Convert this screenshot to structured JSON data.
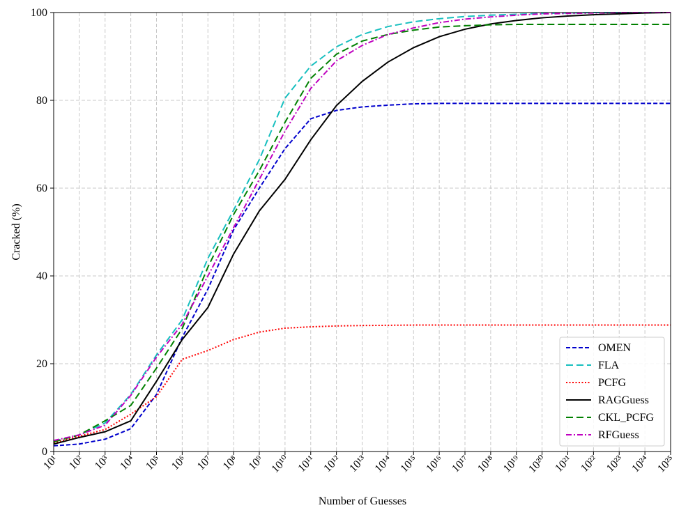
{
  "chart_data": {
    "type": "line",
    "xlabel": "Number of Guesses",
    "ylabel": "Cracked (%)",
    "xlog": true,
    "grid": true,
    "legend": "lower right",
    "x": [
      10.0,
      100.0,
      1000.0,
      10000.0,
      100000.0,
      1000000.0,
      10000000.0,
      100000000.0,
      1000000000.0,
      10000000000.0,
      100000000000.0,
      1000000000000.0,
      10000000000000.0,
      100000000000000.0,
      1000000000000000.0,
      1e+16,
      1e+17,
      1e+18,
      1e+19,
      1e+20,
      1e+21,
      1e+22,
      1e+23,
      1e+24,
      1e+25
    ],
    "xlim": [
      10.0,
      1e+25
    ],
    "xticks": [
      {
        "value": 10.0,
        "label": "10¹"
      },
      {
        "value": 100.0,
        "label": "10²"
      },
      {
        "value": 1000.0,
        "label": "10³"
      },
      {
        "value": 10000.0,
        "label": "10⁴"
      },
      {
        "value": 100000.0,
        "label": "10⁵"
      },
      {
        "value": 1000000.0,
        "label": "10⁶"
      },
      {
        "value": 10000000.0,
        "label": "10⁷"
      },
      {
        "value": 100000000.0,
        "label": "10⁸"
      },
      {
        "value": 1000000000.0,
        "label": "10⁹"
      },
      {
        "value": 10000000000.0,
        "label": "10¹⁰"
      },
      {
        "value": 100000000000.0,
        "label": "10¹¹"
      },
      {
        "value": 1000000000000.0,
        "label": "10¹²"
      },
      {
        "value": 10000000000000.0,
        "label": "10¹³"
      },
      {
        "value": 100000000000000.0,
        "label": "10¹⁴"
      },
      {
        "value": 1000000000000000.0,
        "label": "10¹⁵"
      },
      {
        "value": 1e+16,
        "label": "10¹⁶"
      },
      {
        "value": 1e+17,
        "label": "10¹⁷"
      },
      {
        "value": 1e+18,
        "label": "10¹⁸"
      },
      {
        "value": 1e+19,
        "label": "10¹⁹"
      },
      {
        "value": 1e+20,
        "label": "10²⁰"
      },
      {
        "value": 1e+21,
        "label": "10²¹"
      },
      {
        "value": 1e+22,
        "label": "10²²"
      },
      {
        "value": 1e+23,
        "label": "10²³"
      },
      {
        "value": 1e+24,
        "label": "10²⁴"
      },
      {
        "value": 1e+25,
        "label": "10²⁵"
      }
    ],
    "ylim": [
      0,
      100
    ],
    "yticks": [
      0,
      20,
      40,
      60,
      80,
      100
    ],
    "series": [
      {
        "name": "OMEN",
        "color": "#0000cc",
        "linestyle": "dashed",
        "values": [
          1.3,
          1.7,
          2.8,
          5.2,
          13,
          26,
          37,
          50.5,
          60,
          69,
          75.8,
          77.7,
          78.5,
          78.9,
          79.2,
          79.3,
          79.3,
          79.3,
          79.3,
          79.3,
          79.3,
          79.3,
          79.3,
          79.3,
          79.3
        ]
      },
      {
        "name": "FLA",
        "color": "#17bfbf",
        "linestyle": "longdash",
        "values": [
          2.3,
          3.8,
          6.5,
          13,
          22,
          30,
          44,
          55,
          66.5,
          80.5,
          87.8,
          92.2,
          95,
          96.8,
          97.9,
          98.6,
          99.1,
          99.4,
          99.6,
          99.8,
          99.9,
          100,
          100,
          100,
          100
        ]
      },
      {
        "name": "PCFG",
        "color": "#ff0000",
        "linestyle": "dotted",
        "values": [
          2,
          3.5,
          5,
          8.5,
          12.5,
          21,
          23,
          25.5,
          27.2,
          28.1,
          28.4,
          28.6,
          28.7,
          28.75,
          28.8,
          28.8,
          28.8,
          28.8,
          28.8,
          28.8,
          28.8,
          28.8,
          28.8,
          28.8,
          28.8
        ]
      },
      {
        "name": "RAGGuess",
        "color": "#000000",
        "linestyle": "solid",
        "values": [
          1.7,
          3.2,
          4.5,
          7,
          16,
          25.5,
          32.8,
          45,
          54.8,
          62,
          71,
          78.8,
          84.3,
          88.7,
          92,
          94.5,
          96.2,
          97.4,
          98.2,
          98.8,
          99.2,
          99.5,
          99.7,
          99.9,
          100
        ]
      },
      {
        "name": "CKL_PCFG",
        "color": "#008000",
        "linestyle": "longdash",
        "values": [
          2.2,
          3.8,
          7,
          10.5,
          19,
          28,
          42,
          54,
          64,
          75,
          85,
          90.5,
          93.5,
          95,
          96,
          96.7,
          97,
          97.2,
          97.3,
          97.3,
          97.3,
          97.3,
          97.3,
          97.3,
          97.3
        ]
      },
      {
        "name": "RFGuess",
        "color": "#bf00bf",
        "linestyle": "dashdot",
        "values": [
          2.5,
          3.8,
          6,
          12.8,
          21.5,
          29,
          40,
          51,
          62,
          73,
          82.7,
          89,
          92.5,
          95,
          96.5,
          97.7,
          98.5,
          99,
          99.4,
          99.7,
          99.8,
          99.9,
          100,
          100,
          100
        ]
      }
    ]
  }
}
